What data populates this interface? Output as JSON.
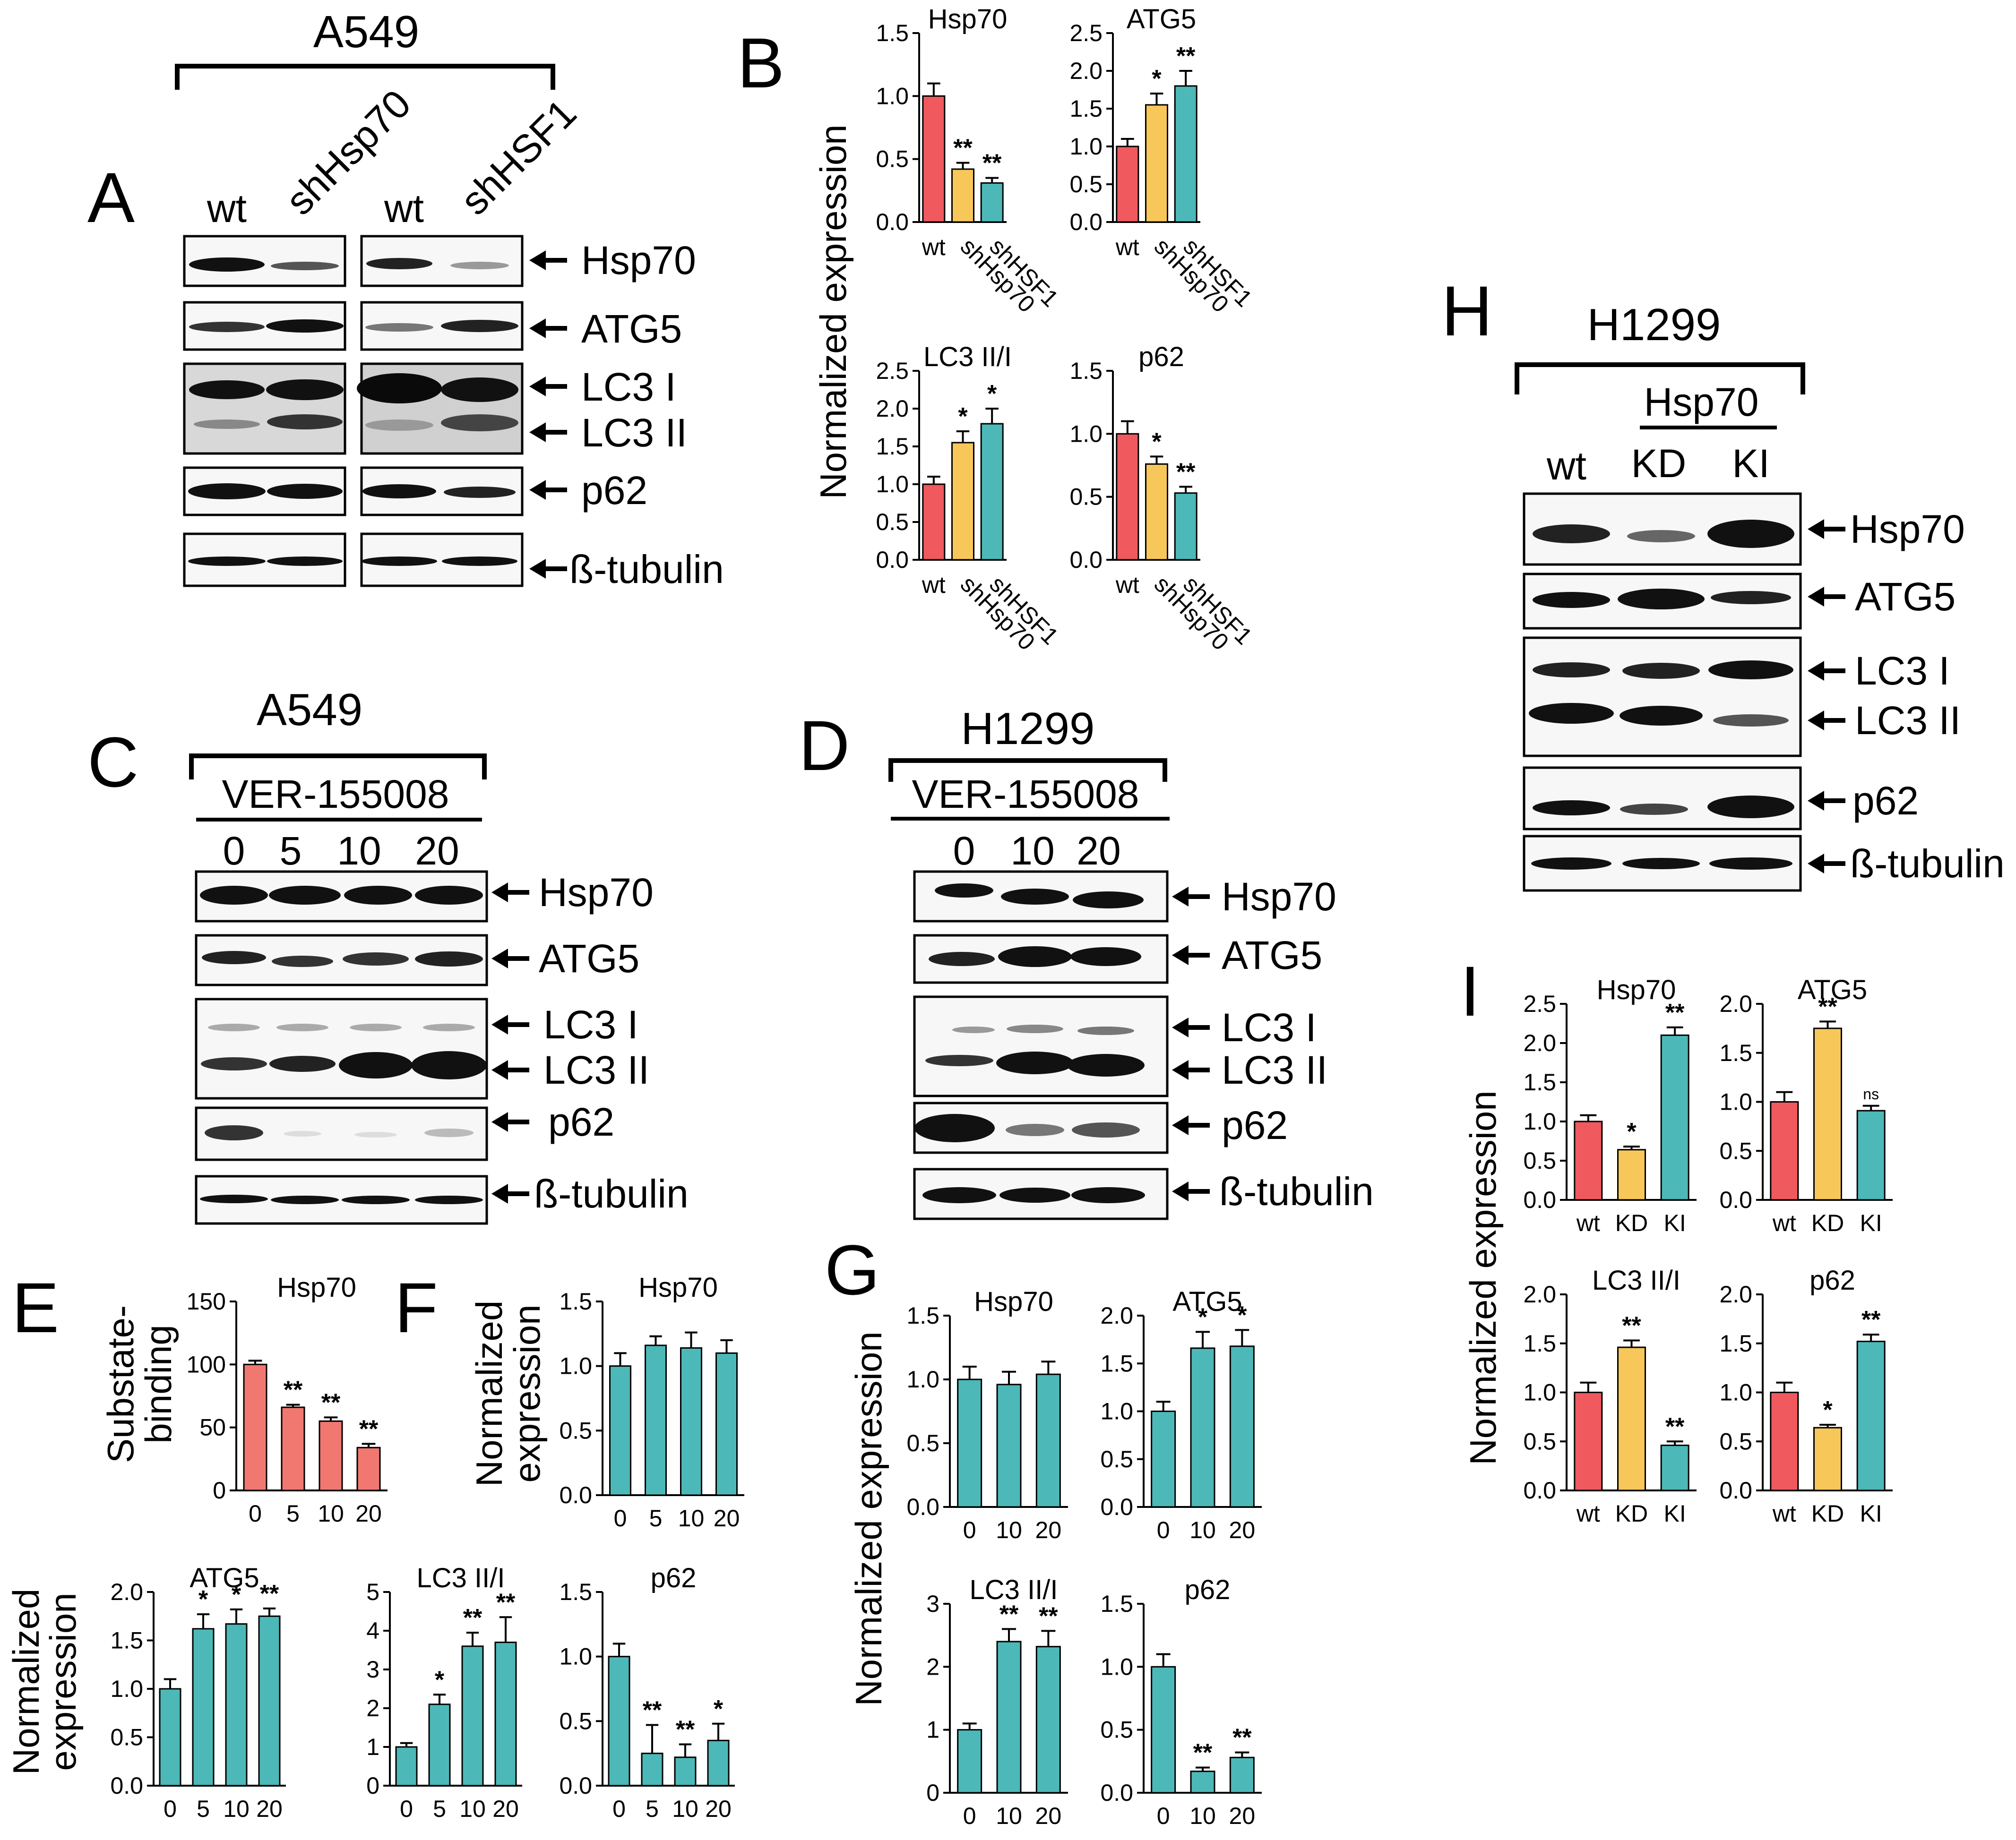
{
  "panel_letters": [
    "A",
    "B",
    "C",
    "D",
    "E",
    "F",
    "G",
    "H",
    "I"
  ],
  "colors": {
    "wt": "#f0595e",
    "sh1": "#f8c75a",
    "sh2": "#4db8b8",
    "dose": "#4db8b8",
    "dose_e": "#f07870"
  },
  "icons": [
    "arrow-left-icon"
  ],
  "blots": {
    "A": {
      "cell_line": "A549",
      "lanes": [
        "wt",
        "shHsp70",
        "wt",
        "shHSF1"
      ],
      "bands": [
        "Hsp70",
        "ATG5",
        "LC3 I",
        "LC3 II",
        "p62",
        "ß-tubulin"
      ]
    },
    "C": {
      "cell_line": "A549",
      "treatment": "VER-155008",
      "lanes": [
        "0",
        "5",
        "10",
        "20"
      ],
      "bands": [
        "Hsp70",
        "ATG5",
        "LC3 I",
        "LC3 II",
        "p62",
        "ß-tubulin"
      ]
    },
    "D": {
      "cell_line": "H1299",
      "treatment": "VER-155008",
      "lanes": [
        "0",
        "10",
        "20"
      ],
      "bands": [
        "Hsp70",
        "ATG5",
        "LC3 I",
        "LC3 II",
        "p62",
        "ß-tubulin"
      ]
    },
    "H": {
      "cell_line": "H1299",
      "group": "Hsp70",
      "lanes": [
        "wt",
        "KD",
        "KI"
      ],
      "bands": [
        "Hsp70",
        "ATG5",
        "LC3 I",
        "LC3 II",
        "p62",
        "ß-tubulin"
      ]
    }
  },
  "ylabels": {
    "B": "Normalized expression",
    "E_top": [
      "Substate-",
      "binding"
    ],
    "E_bottom": [
      "Normalized",
      "expression"
    ],
    "F": [
      "Normalized",
      "expression"
    ],
    "G": "Normalized expression",
    "I": "Normalized expression"
  },
  "chart_data": [
    {
      "id": "B1",
      "panel": "B",
      "type": "bar",
      "title": "Hsp70",
      "categories": [
        "wt",
        "shHsp70",
        "shHSF1"
      ],
      "values": [
        1.0,
        0.42,
        0.31
      ],
      "errors": [
        0.1,
        0.05,
        0.04
      ],
      "stars": [
        "",
        "**",
        "**"
      ],
      "ylim": [
        0,
        1.5
      ],
      "yticks": [
        "0.0",
        "0.5",
        "1.0",
        "1.5"
      ]
    },
    {
      "id": "B2",
      "panel": "B",
      "type": "bar",
      "title": "ATG5",
      "categories": [
        "wt",
        "shHsp70",
        "shHSF1"
      ],
      "values": [
        1.0,
        1.55,
        1.8
      ],
      "errors": [
        0.1,
        0.15,
        0.2
      ],
      "stars": [
        "",
        "*",
        "**"
      ],
      "ylim": [
        0,
        2.5
      ],
      "yticks": [
        "0.0",
        "0.5",
        "1.0",
        "1.5",
        "2.0",
        "2.5"
      ]
    },
    {
      "id": "B3",
      "panel": "B",
      "type": "bar",
      "title": "LC3 II/I",
      "categories": [
        "wt",
        "shHsp70",
        "shHSF1"
      ],
      "values": [
        1.0,
        1.55,
        1.8
      ],
      "errors": [
        0.1,
        0.15,
        0.2
      ],
      "stars": [
        "",
        "*",
        "*"
      ],
      "ylim": [
        0,
        2.5
      ],
      "yticks": [
        "0.0",
        "0.5",
        "1.0",
        "1.5",
        "2.0",
        "2.5"
      ]
    },
    {
      "id": "B4",
      "panel": "B",
      "type": "bar",
      "title": "p62",
      "categories": [
        "wt",
        "shHsp70",
        "shHSF1"
      ],
      "values": [
        1.0,
        0.76,
        0.53
      ],
      "errors": [
        0.1,
        0.06,
        0.05
      ],
      "stars": [
        "",
        "*",
        "**"
      ],
      "ylim": [
        0,
        1.5
      ],
      "yticks": [
        "0.0",
        "0.5",
        "1.0",
        "1.5"
      ]
    },
    {
      "id": "E1",
      "panel": "E",
      "type": "bar",
      "title": "Hsp70",
      "categories": [
        "0",
        "5",
        "10",
        "20"
      ],
      "values": [
        100,
        66,
        55,
        34
      ],
      "errors": [
        3,
        2,
        3,
        3
      ],
      "stars": [
        "",
        "**",
        "**",
        "**"
      ],
      "ylim": [
        0,
        150
      ],
      "yticks": [
        "0",
        "50",
        "100",
        "150"
      ]
    },
    {
      "id": "E2",
      "panel": "E",
      "type": "bar",
      "title": "ATG5",
      "categories": [
        "0",
        "5",
        "10",
        "20"
      ],
      "values": [
        1.0,
        1.62,
        1.67,
        1.75
      ],
      "errors": [
        0.1,
        0.15,
        0.15,
        0.08
      ],
      "stars": [
        "",
        "*",
        "*",
        "**"
      ],
      "ylim": [
        0,
        2.0
      ],
      "yticks": [
        "0.0",
        "0.5",
        "1.0",
        "1.5",
        "2.0"
      ]
    },
    {
      "id": "E3",
      "panel": "E",
      "type": "bar",
      "title": "LC3 II/I",
      "categories": [
        "0",
        "5",
        "10",
        "20"
      ],
      "values": [
        1.0,
        2.1,
        3.6,
        3.7
      ],
      "errors": [
        0.1,
        0.25,
        0.35,
        0.65
      ],
      "stars": [
        "",
        "*",
        "**",
        "**"
      ],
      "ylim": [
        0,
        5
      ],
      "yticks": [
        "0",
        "1",
        "2",
        "3",
        "4",
        "5"
      ]
    },
    {
      "id": "E4",
      "panel": "E",
      "type": "bar",
      "title": "p62",
      "categories": [
        "0",
        "5",
        "10",
        "20"
      ],
      "values": [
        1.0,
        0.25,
        0.22,
        0.35
      ],
      "errors": [
        0.1,
        0.22,
        0.1,
        0.13
      ],
      "stars": [
        "",
        "**",
        "**",
        "*"
      ],
      "ylim": [
        0,
        1.5
      ],
      "yticks": [
        "0.0",
        "0.5",
        "1.0",
        "1.5"
      ]
    },
    {
      "id": "F1",
      "panel": "F",
      "type": "bar",
      "title": "Hsp70",
      "categories": [
        "0",
        "5",
        "10",
        "20"
      ],
      "values": [
        1.0,
        1.16,
        1.14,
        1.1
      ],
      "errors": [
        0.1,
        0.07,
        0.12,
        0.1
      ],
      "stars": [
        "",
        "",
        "",
        ""
      ],
      "ylim": [
        0,
        1.5
      ],
      "yticks": [
        "0.0",
        "0.5",
        "1.0",
        "1.5"
      ]
    },
    {
      "id": "G1",
      "panel": "G",
      "type": "bar",
      "title": "Hsp70",
      "categories": [
        "0",
        "10",
        "20"
      ],
      "values": [
        1.0,
        0.96,
        1.04
      ],
      "errors": [
        0.1,
        0.1,
        0.1
      ],
      "stars": [
        "",
        "",
        ""
      ],
      "ylim": [
        0,
        1.5
      ],
      "yticks": [
        "0.0",
        "0.5",
        "1.0",
        "1.5"
      ]
    },
    {
      "id": "G2",
      "panel": "G",
      "type": "bar",
      "title": "ATG5",
      "categories": [
        "0",
        "10",
        "20"
      ],
      "values": [
        1.0,
        1.66,
        1.68
      ],
      "errors": [
        0.1,
        0.17,
        0.17
      ],
      "stars": [
        "",
        "*",
        "*"
      ],
      "ylim": [
        0,
        2.0
      ],
      "yticks": [
        "0.0",
        "0.5",
        "1.0",
        "1.5",
        "2.0"
      ]
    },
    {
      "id": "G3",
      "panel": "G",
      "type": "bar",
      "title": "LC3 II/I",
      "categories": [
        "0",
        "10",
        "20"
      ],
      "values": [
        1.0,
        2.4,
        2.32
      ],
      "errors": [
        0.1,
        0.2,
        0.25
      ],
      "stars": [
        "",
        "**",
        "**"
      ],
      "ylim": [
        0,
        3
      ],
      "yticks": [
        "0",
        "1",
        "2",
        "3"
      ]
    },
    {
      "id": "G4",
      "panel": "G",
      "type": "bar",
      "title": "p62",
      "categories": [
        "0",
        "10",
        "20"
      ],
      "values": [
        1.0,
        0.17,
        0.28
      ],
      "errors": [
        0.1,
        0.03,
        0.04
      ],
      "stars": [
        "",
        "**",
        "**"
      ],
      "ylim": [
        0,
        1.5
      ],
      "yticks": [
        "0.0",
        "0.5",
        "1.0",
        "1.5"
      ]
    },
    {
      "id": "I1",
      "panel": "I",
      "type": "bar",
      "title": "Hsp70",
      "categories": [
        "wt",
        "KD",
        "KI"
      ],
      "values": [
        1.0,
        0.64,
        2.1
      ],
      "errors": [
        0.08,
        0.04,
        0.1
      ],
      "stars": [
        "",
        "*",
        "**"
      ],
      "ylim": [
        0,
        2.5
      ],
      "yticks": [
        "0.0",
        "0.5",
        "1.0",
        "1.5",
        "2.0",
        "2.5"
      ]
    },
    {
      "id": "I2",
      "panel": "I",
      "type": "bar",
      "title": "ATG5",
      "categories": [
        "wt",
        "KD",
        "KI"
      ],
      "values": [
        1.0,
        1.75,
        0.91
      ],
      "errors": [
        0.1,
        0.07,
        0.05
      ],
      "stars": [
        "",
        "**",
        "ns"
      ],
      "ylim": [
        0,
        2.0
      ],
      "yticks": [
        "0.0",
        "0.5",
        "1.0",
        "1.5",
        "2.0"
      ]
    },
    {
      "id": "I3",
      "panel": "I",
      "type": "bar",
      "title": "LC3 II/I",
      "categories": [
        "wt",
        "KD",
        "KI"
      ],
      "values": [
        1.0,
        1.46,
        0.46
      ],
      "errors": [
        0.1,
        0.07,
        0.04
      ],
      "stars": [
        "",
        "**",
        "**"
      ],
      "ylim": [
        0,
        2.0
      ],
      "yticks": [
        "0.0",
        "0.5",
        "1.0",
        "1.5",
        "2.0"
      ]
    },
    {
      "id": "I4",
      "panel": "I",
      "type": "bar",
      "title": "p62",
      "categories": [
        "wt",
        "KD",
        "KI"
      ],
      "values": [
        1.0,
        0.64,
        1.52
      ],
      "errors": [
        0.1,
        0.03,
        0.07
      ],
      "stars": [
        "",
        "*",
        "**"
      ],
      "ylim": [
        0,
        2.0
      ],
      "yticks": [
        "0.0",
        "0.5",
        "1.0",
        "1.5",
        "2.0"
      ]
    }
  ]
}
